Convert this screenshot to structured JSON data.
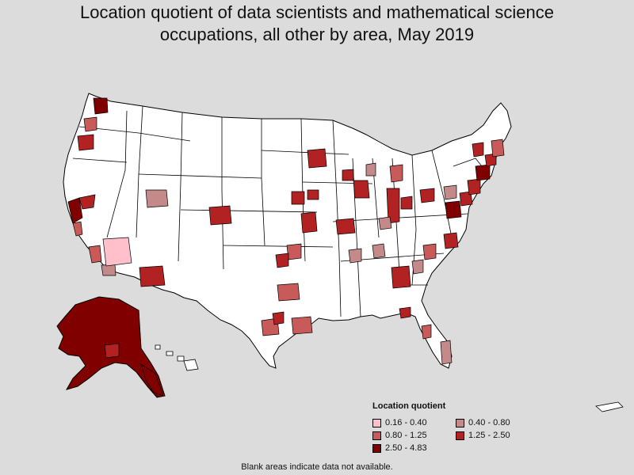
{
  "title_line1": "Location quotient of data scientists and mathematical science",
  "title_line2": "occupations, all other by area, May 2019",
  "legend": {
    "title": "Location quotient",
    "items": [
      {
        "label": "0.16 - 0.40",
        "color": "#ffc0cb"
      },
      {
        "label": "0.40 - 0.80",
        "color": "#c48a8a"
      },
      {
        "label": "0.80 - 1.25",
        "color": "#c85a5a"
      },
      {
        "label": "1.25 - 2.50",
        "color": "#b22222"
      },
      {
        "label": "2.50 - 4.83",
        "color": "#800000"
      }
    ]
  },
  "footnote": "Blank areas indicate data not available.",
  "colors": {
    "background": "#dcdcdc",
    "no_data": "#ffffff",
    "border": "#000000"
  }
}
